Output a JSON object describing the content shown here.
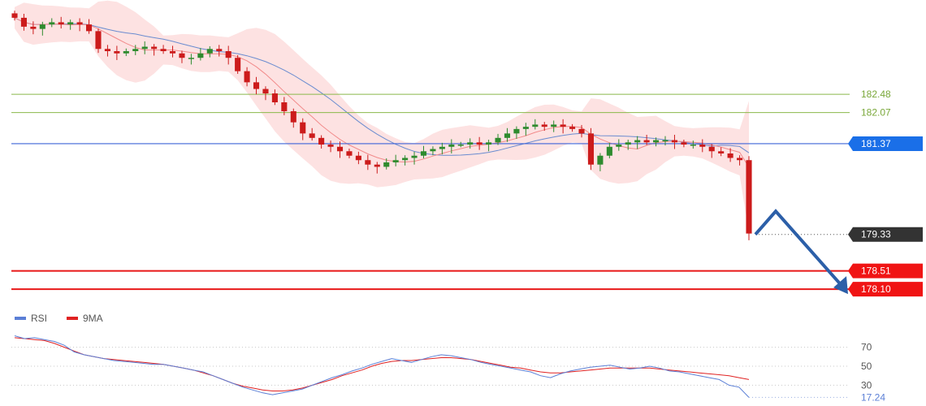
{
  "chart_data": [
    {
      "type": "candlestick",
      "series": [
        {
          "name": "",
          "values": [
            184.2,
            184.0,
            183.95,
            184.05,
            184.1,
            184.05,
            184.1,
            184.05,
            183.9,
            183.5,
            183.45,
            183.4,
            183.45,
            183.5,
            183.55,
            183.5,
            183.45,
            183.4,
            183.3,
            183.3,
            183.4,
            183.5,
            183.45,
            183.3,
            183.0,
            182.75,
            182.6,
            182.5,
            182.3,
            182.1,
            181.85,
            181.6,
            181.5,
            181.35,
            181.3,
            181.2,
            181.1,
            181.0,
            180.9,
            180.85,
            180.95,
            181.0,
            181.05,
            181.1,
            181.2,
            181.25,
            181.3,
            181.35,
            181.35,
            181.4,
            181.35,
            181.4,
            181.5,
            181.6,
            181.7,
            181.75,
            181.8,
            181.75,
            181.8,
            181.75,
            181.7,
            181.6,
            180.9,
            181.1,
            181.3,
            181.35,
            181.4,
            181.45,
            181.4,
            181.45,
            181.45,
            181.4,
            181.35,
            181.35,
            181.3,
            181.2,
            181.15,
            181.05,
            181.0,
            179.35
          ]
        }
      ],
      "lines": [
        {
          "name": "MA fast",
          "color": "#f28b8b"
        },
        {
          "name": "MA slow",
          "color": "#6a8cd0"
        }
      ],
      "bollinger_fill": "#fde2e2",
      "candle_colors": {
        "up": "#2e8b2e",
        "down": "#cc1b1b"
      },
      "ylim": [
        177.7,
        184.6
      ],
      "levels": [
        {
          "value": "182.48",
          "color": "#8ab84a",
          "text_color": "#7aa83a",
          "style": "line"
        },
        {
          "value": "182.07",
          "color": "#8ab84a",
          "text_color": "#7aa83a",
          "style": "line"
        },
        {
          "value": "181.37",
          "color": "#3d64d8",
          "tag_bg": "#1a6fe8",
          "style": "tag"
        },
        {
          "value": "179.33",
          "color": "#555555",
          "tag_bg": "#333333",
          "style": "dotted-tag"
        },
        {
          "value": "178.51",
          "color": "#e81818",
          "tag_bg": "#f01414",
          "style": "tag"
        },
        {
          "value": "178.10",
          "color": "#e81818",
          "tag_bg": "#f01414",
          "style": "tag"
        }
      ],
      "projection": {
        "color": "#2c5fa8",
        "path": [
          179.33,
          179.85,
          178.1
        ]
      }
    },
    {
      "type": "line",
      "legend": [
        {
          "name": "RSI",
          "color": "#5b7fd6"
        },
        {
          "name": "9MA",
          "color": "#e02222"
        }
      ],
      "ylim": [
        15,
        85
      ],
      "levels": [
        "70",
        "50",
        "30"
      ],
      "last_value": "17.24",
      "series": [
        {
          "name": "RSI",
          "color": "#5b7fd6",
          "values": [
            82,
            79,
            80,
            78,
            76,
            72,
            65,
            62,
            60,
            58,
            56,
            55,
            54,
            53,
            52,
            52,
            50,
            48,
            46,
            44,
            40,
            36,
            32,
            28,
            25,
            22,
            20,
            22,
            24,
            26,
            30,
            34,
            38,
            41,
            45,
            48,
            52,
            55,
            58,
            56,
            54,
            57,
            60,
            62,
            61,
            59,
            57,
            54,
            52,
            50,
            48,
            46,
            44,
            40,
            38,
            42,
            45,
            47,
            49,
            50,
            51,
            49,
            47,
            48,
            50,
            48,
            45,
            44,
            42,
            40,
            38,
            36,
            30,
            28,
            17.24
          ]
        },
        {
          "name": "9MA",
          "color": "#e02222",
          "values": [
            80,
            79,
            78,
            77,
            74,
            70,
            66,
            62,
            60,
            58,
            57,
            56,
            55,
            54,
            53,
            52,
            50,
            48,
            46,
            43,
            40,
            36,
            32,
            29,
            27,
            25,
            24,
            24,
            25,
            27,
            30,
            33,
            36,
            40,
            43,
            46,
            50,
            53,
            55,
            56,
            56,
            57,
            58,
            59,
            59,
            58,
            57,
            55,
            53,
            51,
            49,
            48,
            46,
            44,
            43,
            43,
            44,
            45,
            46,
            47,
            48,
            48,
            48,
            48,
            48,
            47,
            46,
            45,
            44,
            43,
            42,
            41,
            40,
            38,
            36
          ]
        }
      ]
    }
  ]
}
